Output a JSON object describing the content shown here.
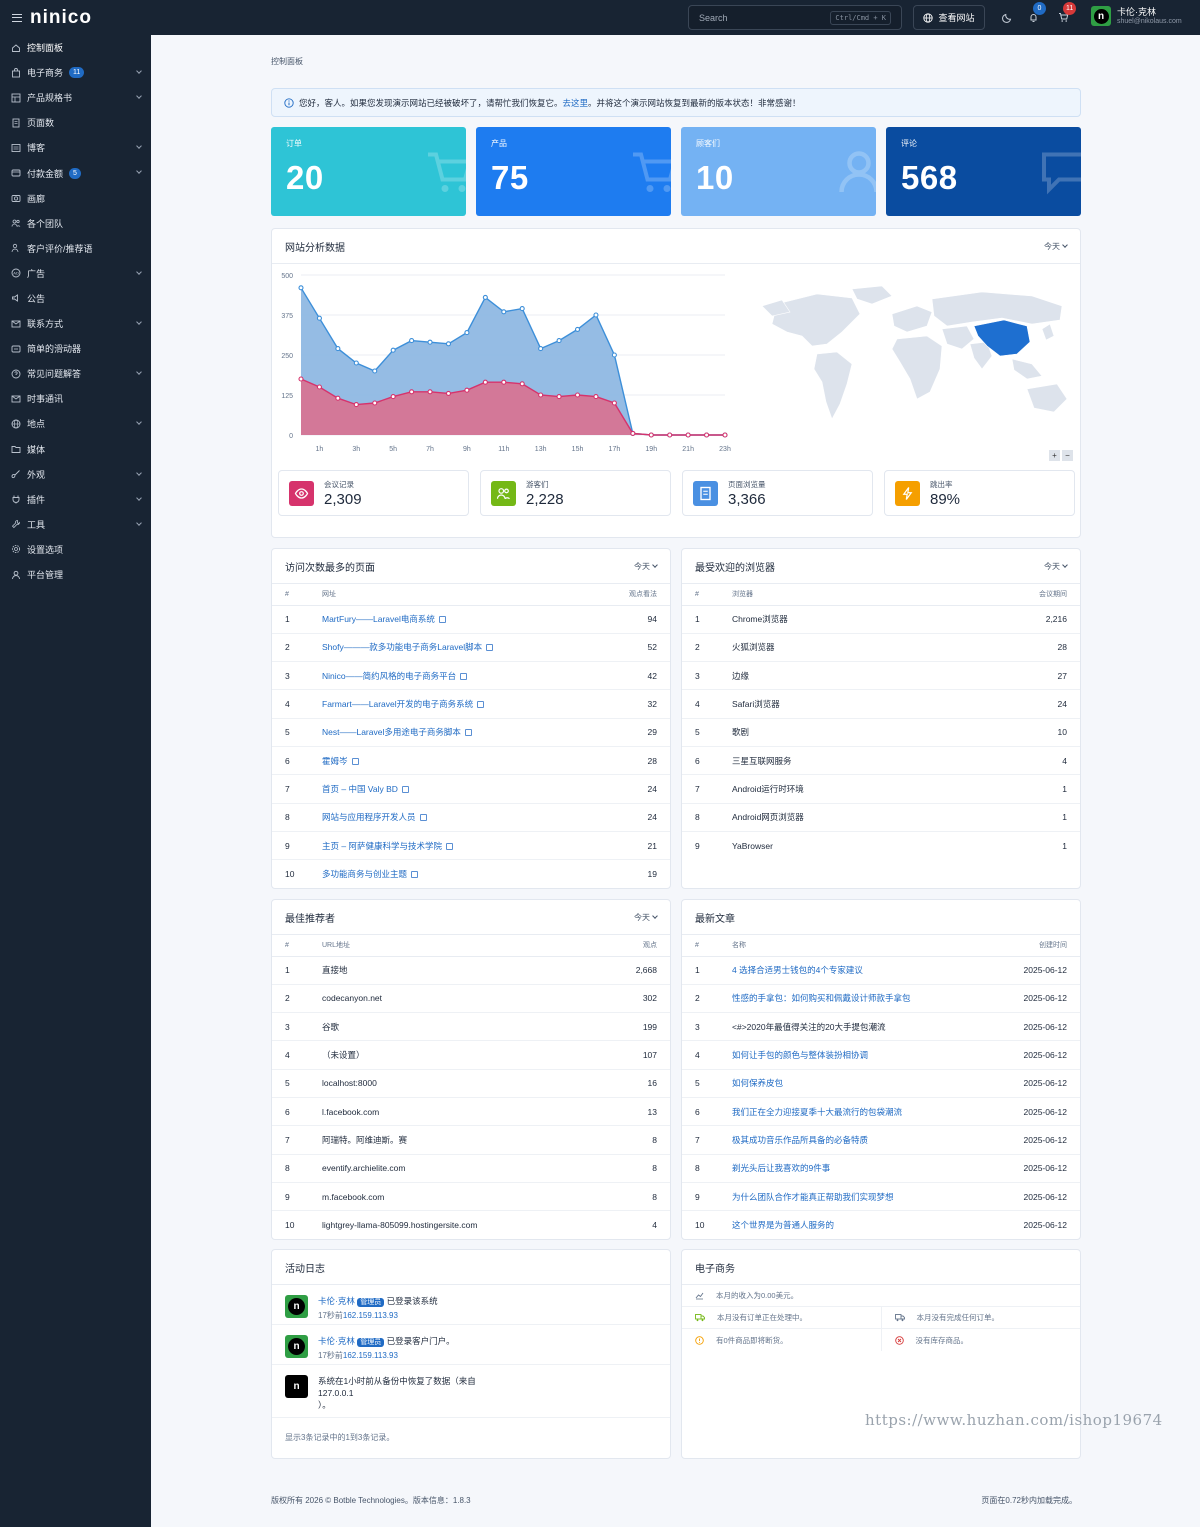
{
  "header": {
    "logo": "ninico",
    "search_placeholder": "Search",
    "search_shortcut": "Ctrl/Cmd + K",
    "view_site": "查看网站",
    "notif_count": "0",
    "cart_count": "11",
    "user_name": "卡伦·克林",
    "user_email": "shuel@nikolaus.com",
    "avatar_letter": "n"
  },
  "sidebar": {
    "items": [
      {
        "label": "控制面板",
        "icon": "home-icon",
        "chevron": false,
        "badge": ""
      },
      {
        "label": "电子商务",
        "icon": "bag-icon",
        "chevron": true,
        "badge": "11"
      },
      {
        "label": "产品规格书",
        "icon": "table-icon",
        "chevron": true,
        "badge": ""
      },
      {
        "label": "页面数",
        "icon": "page-icon",
        "chevron": false,
        "badge": ""
      },
      {
        "label": "博客",
        "icon": "blog-icon",
        "chevron": true,
        "badge": ""
      },
      {
        "label": "付款金额",
        "icon": "payment-icon",
        "chevron": true,
        "badge": "5"
      },
      {
        "label": "画廊",
        "icon": "camera-icon",
        "chevron": false,
        "badge": ""
      },
      {
        "label": "各个团队",
        "icon": "team-icon",
        "chevron": false,
        "badge": ""
      },
      {
        "label": "客户评价/推荐语",
        "icon": "testimonial-icon",
        "chevron": false,
        "badge": ""
      },
      {
        "label": "广告",
        "icon": "ad-icon",
        "chevron": true,
        "badge": ""
      },
      {
        "label": "公告",
        "icon": "speaker-icon",
        "chevron": false,
        "badge": ""
      },
      {
        "label": "联系方式",
        "icon": "mail-icon",
        "chevron": true,
        "badge": ""
      },
      {
        "label": "简单的滑动器",
        "icon": "slider-icon",
        "chevron": false,
        "badge": ""
      },
      {
        "label": "常见问题解答",
        "icon": "help-icon",
        "chevron": true,
        "badge": ""
      },
      {
        "label": "时事通讯",
        "icon": "newsletter-icon",
        "chevron": false,
        "badge": ""
      },
      {
        "label": "地点",
        "icon": "globe-icon",
        "chevron": true,
        "badge": ""
      },
      {
        "label": "媒体",
        "icon": "folder-icon",
        "chevron": false,
        "badge": ""
      },
      {
        "label": "外观",
        "icon": "brush-icon",
        "chevron": true,
        "badge": ""
      },
      {
        "label": "插件",
        "icon": "plug-icon",
        "chevron": true,
        "badge": ""
      },
      {
        "label": "工具",
        "icon": "tool-icon",
        "chevron": true,
        "badge": ""
      },
      {
        "label": "设置选项",
        "icon": "gear-icon",
        "chevron": false,
        "badge": ""
      },
      {
        "label": "平台管理",
        "icon": "user-icon",
        "chevron": false,
        "badge": ""
      }
    ]
  },
  "breadcrumb": "控制面板",
  "alert": {
    "before": "您好，客人。如果您发现演示网站已经被破坏了，请帮忙我们恢复它。",
    "link": "去这里",
    "after": "。并将这个演示网站恢复到最新的版本状态！非常感谢！"
  },
  "stats": [
    {
      "label": "订单",
      "value": "20",
      "color": "#2ec4d6",
      "icon": "cart-icon"
    },
    {
      "label": "产品",
      "value": "75",
      "color": "#1e7cf0",
      "icon": "cart-icon"
    },
    {
      "label": "顾客们",
      "value": "10",
      "color": "#74b2f3",
      "icon": "user-icon"
    },
    {
      "label": "评论",
      "value": "568",
      "color": "#0a4ca0",
      "icon": "chat-icon"
    }
  ],
  "analytics": {
    "title": "网站分析数据",
    "range": "今天",
    "tiles": [
      {
        "label": "会议记录",
        "value": "2,309",
        "color": "#d6336c",
        "icon": "eye-icon"
      },
      {
        "label": "游客们",
        "value": "2,228",
        "color": "#74b816",
        "icon": "users-icon"
      },
      {
        "label": "页面浏览量",
        "value": "3,366",
        "color": "#4a90e2",
        "icon": "page-icon"
      },
      {
        "label": "跳出率",
        "value": "89%",
        "color": "#f59f00",
        "icon": "bolt-icon"
      }
    ],
    "map_controls": [
      "+",
      "−"
    ]
  },
  "chart_data": {
    "type": "area",
    "x": [
      "0h",
      "1h",
      "2h",
      "3h",
      "4h",
      "5h",
      "6h",
      "7h",
      "8h",
      "9h",
      "10h",
      "11h",
      "12h",
      "13h",
      "14h",
      "15h",
      "16h",
      "17h",
      "18h",
      "19h",
      "20h",
      "21h",
      "22h",
      "23h"
    ],
    "tick_labels": [
      "1h",
      "3h",
      "5h",
      "7h",
      "9h",
      "11h",
      "13h",
      "15h",
      "17h",
      "19h",
      "21h",
      "23h"
    ],
    "ylim": [
      0,
      500
    ],
    "yticks": [
      0,
      125,
      250,
      375,
      500
    ],
    "grid": true,
    "series": [
      {
        "name": "",
        "color": "#3d8fd9",
        "values": [
          460,
          365,
          270,
          225,
          200,
          265,
          295,
          290,
          285,
          320,
          430,
          385,
          395,
          270,
          295,
          330,
          375,
          250,
          5,
          0,
          0,
          0,
          0,
          0
        ]
      },
      {
        "name": "",
        "color": "#d6336c",
        "values": [
          175,
          150,
          115,
          95,
          100,
          120,
          135,
          135,
          130,
          140,
          165,
          165,
          160,
          125,
          120,
          125,
          120,
          100,
          5,
          0,
          0,
          0,
          0,
          0
        ]
      }
    ]
  },
  "top_pages": {
    "title": "访问次数最多的页面",
    "range": "今天",
    "columns": [
      "#",
      "网址",
      "观点看法"
    ],
    "rows": [
      [
        "1",
        "MartFury——Laravel电商系统",
        "94"
      ],
      [
        "2",
        "Shofy———款多功能电子商务Laravel脚本",
        "52"
      ],
      [
        "3",
        "Ninico——简约风格的电子商务平台",
        "42"
      ],
      [
        "4",
        "Farmart——Laravel开发的电子商务系统",
        "32"
      ],
      [
        "5",
        "Nest——Laravel多用途电子商务脚本",
        "29"
      ],
      [
        "6",
        "霍姆岑",
        "28"
      ],
      [
        "7",
        "首页 – 中国 Valy BD",
        "24"
      ],
      [
        "8",
        "网站与应用程序开发人员",
        "24"
      ],
      [
        "9",
        "主页 – 阿萨健康科学与技术学院",
        "21"
      ],
      [
        "10",
        "多功能商务与创业主题",
        "19"
      ]
    ]
  },
  "browsers": {
    "title": "最受欢迎的浏览器",
    "range": "今天",
    "columns": [
      "#",
      "浏览器",
      "会议期间"
    ],
    "rows": [
      [
        "1",
        "Chrome浏览器",
        "2,216"
      ],
      [
        "2",
        "火狐浏览器",
        "28"
      ],
      [
        "3",
        "边缘",
        "27"
      ],
      [
        "4",
        "Safari浏览器",
        "24"
      ],
      [
        "5",
        "歌剧",
        "10"
      ],
      [
        "6",
        "三星互联网服务",
        "4"
      ],
      [
        "7",
        "Android运行时环境",
        "1"
      ],
      [
        "8",
        "Android网页浏览器",
        "1"
      ],
      [
        "9",
        "YaBrowser",
        "1"
      ]
    ]
  },
  "referrers": {
    "title": "最佳推荐者",
    "range": "今天",
    "columns": [
      "#",
      "URL地址",
      "观点"
    ],
    "rows": [
      [
        "1",
        "直接地",
        "2,668"
      ],
      [
        "2",
        "codecanyon.net",
        "302"
      ],
      [
        "3",
        "谷歌",
        "199"
      ],
      [
        "4",
        "（未设置）",
        "107"
      ],
      [
        "5",
        "localhost:8000",
        "16"
      ],
      [
        "6",
        "l.facebook.com",
        "13"
      ],
      [
        "7",
        "阿瑞特。阿维迪斯。赛",
        "8"
      ],
      [
        "8",
        "eventify.archielite.com",
        "8"
      ],
      [
        "9",
        "m.facebook.com",
        "8"
      ],
      [
        "10",
        "lightgrey-llama-805099.hostingersite.com",
        "4"
      ]
    ]
  },
  "posts": {
    "title": "最新文章",
    "columns": [
      "#",
      "名称",
      "创建时间"
    ],
    "rows": [
      [
        "1",
        "4 选择合适男士钱包的4个专家建议",
        "2025-06-12"
      ],
      [
        "2",
        "性感的手拿包：如何购买和佩戴设计师款手拿包",
        "2025-06-12"
      ],
      [
        "3",
        "<#>2020年最值得关注的20大手提包潮流",
        "2025-06-12"
      ],
      [
        "4",
        "如何让手包的颜色与整体装扮相协调",
        "2025-06-12"
      ],
      [
        "5",
        "如何保养皮包",
        "2025-06-12"
      ],
      [
        "6",
        "我们正在全力迎接夏季十大最流行的包袋潮流",
        "2025-06-12"
      ],
      [
        "7",
        "极其成功音乐作品所具备的必备特质",
        "2025-06-12"
      ],
      [
        "8",
        "剃光头后让我喜欢的9件事",
        "2025-06-12"
      ],
      [
        "9",
        "为什么团队合作才能真正帮助我们实现梦想",
        "2025-06-12"
      ],
      [
        "10",
        "这个世界是为普通人服务的",
        "2025-06-12"
      ]
    ]
  },
  "activity": {
    "title": "活动日志",
    "items": [
      {
        "user": "卡伦·克林",
        "role": "管理员",
        "text": "已登录该系统",
        "time": "17秒前",
        "ip": "162.159.113.93"
      },
      {
        "user": "卡伦·克林",
        "role": "管理员",
        "text": "已登录客户门户。",
        "time": "17秒前",
        "ip": "162.159.113.93"
      }
    ],
    "system": {
      "line1": "系统在1小时前从备份中恢复了数据（来自",
      "line2": "127.0.0.1",
      "line3": "）。"
    },
    "footer": "显示3条记录中的1到3条记录。"
  },
  "ecommerce": {
    "title": "电子商务",
    "revenue": "本月的收入为0.00美元。",
    "processing": "本月没有订单正在处理中。",
    "completed": "本月没有完成任何订单。",
    "low_stock": "有0件商品即将断货。",
    "out_of_stock": "没有库存商品。"
  },
  "footer": {
    "left": "版权所有 2026 © Botble Technologies。版本信息：1.8.3",
    "right": "页面在0.72秒内加载完成。"
  },
  "watermark": "https://www.huzhan.com/ishop19674"
}
